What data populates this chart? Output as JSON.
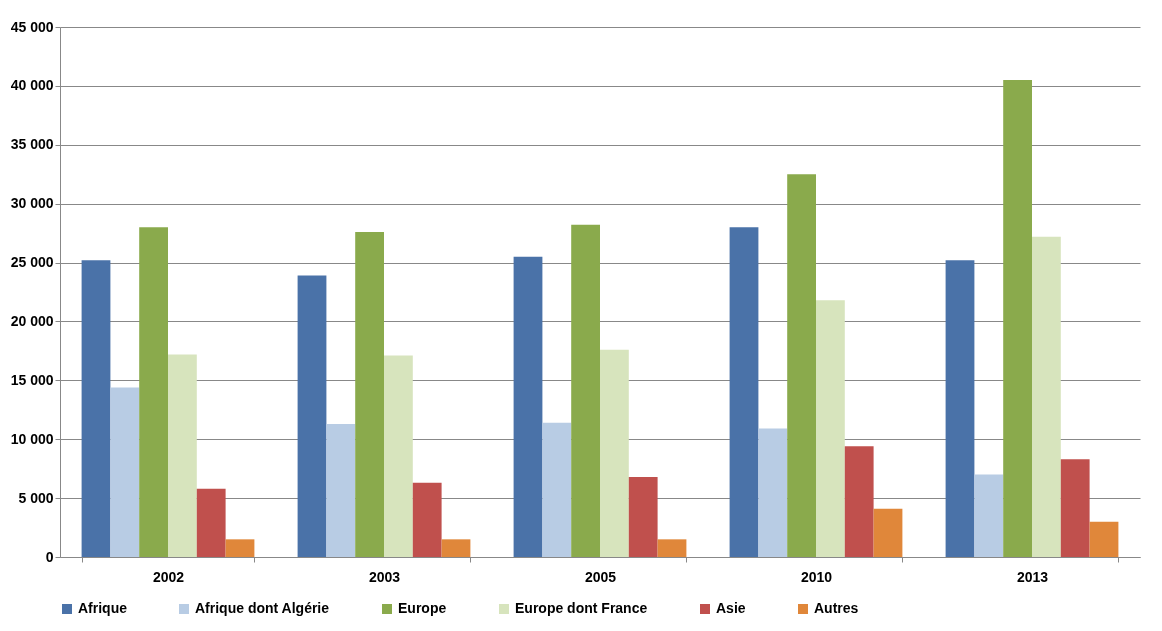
{
  "chart_data": {
    "type": "bar",
    "categories": [
      "2002",
      "2003",
      "2005",
      "2010",
      "2013"
    ],
    "series": [
      {
        "name": "Afrique",
        "color": "#4a72a8",
        "values": [
          25200,
          23900,
          25500,
          28000,
          25200
        ]
      },
      {
        "name": "Afrique dont Algérie",
        "color": "#b8cce4",
        "values": [
          14400,
          11300,
          11400,
          10900,
          7000
        ]
      },
      {
        "name": "Europe",
        "color": "#8aaa4c",
        "values": [
          28000,
          27600,
          28200,
          32500,
          40500
        ]
      },
      {
        "name": "Europe dont France",
        "color": "#d7e4bd",
        "values": [
          17200,
          17100,
          17600,
          21800,
          27200
        ]
      },
      {
        "name": "Asie",
        "color": "#c0504d",
        "values": [
          5800,
          6300,
          6800,
          9400,
          8300
        ]
      },
      {
        "name": "Autres",
        "color": "#e0873a",
        "values": [
          1500,
          1500,
          1500,
          4100,
          3000
        ]
      }
    ],
    "ylim": [
      0,
      45000
    ],
    "yticks": [
      0,
      {
        "value": 5000,
        "label": "5 000"
      },
      {
        "value": 10000,
        "label": "10 000"
      },
      {
        "value": 15000,
        "label": "15 000"
      },
      {
        "value": 20000,
        "label": "20 000"
      },
      {
        "value": 25000,
        "label": "25 000"
      },
      {
        "value": 30000,
        "label": "30 000"
      },
      {
        "value": 35000,
        "label": "35 000"
      },
      {
        "value": 40000,
        "label": "40 000"
      },
      {
        "value": 45000,
        "label": "45 000"
      }
    ],
    "grid": "y",
    "legend": "bottom"
  }
}
